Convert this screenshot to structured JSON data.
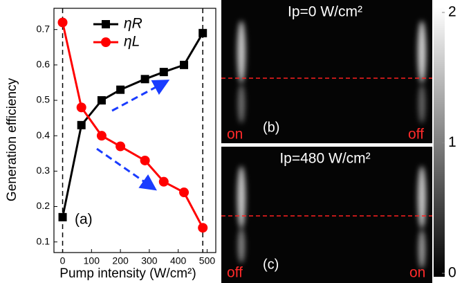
{
  "chart_data": {
    "type": "line",
    "x_label": "Pump intensity (W/cm²)",
    "y_label": "Generation efficiency",
    "panel_label": "(a)",
    "x": [
      0,
      65,
      135,
      200,
      285,
      350,
      420,
      485
    ],
    "series": [
      {
        "name": "ηR",
        "color": "#000000",
        "marker": "square",
        "values": [
          0.17,
          0.43,
          0.5,
          0.53,
          0.56,
          0.58,
          0.6,
          0.69
        ]
      },
      {
        "name": "ηL",
        "color": "#ff0000",
        "marker": "circle",
        "values": [
          0.72,
          0.48,
          0.4,
          0.37,
          0.33,
          0.27,
          0.24,
          0.14
        ]
      }
    ],
    "xlim": [
      -30,
      530
    ],
    "ylim": [
      0.07,
      0.76
    ],
    "xticks": [
      0,
      100,
      200,
      300,
      400,
      500
    ],
    "yticks": [
      0.1,
      0.2,
      0.3,
      0.4,
      0.5,
      0.6,
      0.7
    ],
    "legend": "top",
    "grid": false
  },
  "images": [
    {
      "title": "Ip=0 W/cm²",
      "panel_label": "(b)",
      "left_label": "on",
      "right_label": "off"
    },
    {
      "title": "Ip=480 W/cm²",
      "panel_label": "(c)",
      "left_label": "off",
      "right_label": "on"
    }
  ],
  "colorbar": {
    "lim": [
      0,
      2
    ],
    "ticks": [
      0,
      1,
      2
    ]
  }
}
